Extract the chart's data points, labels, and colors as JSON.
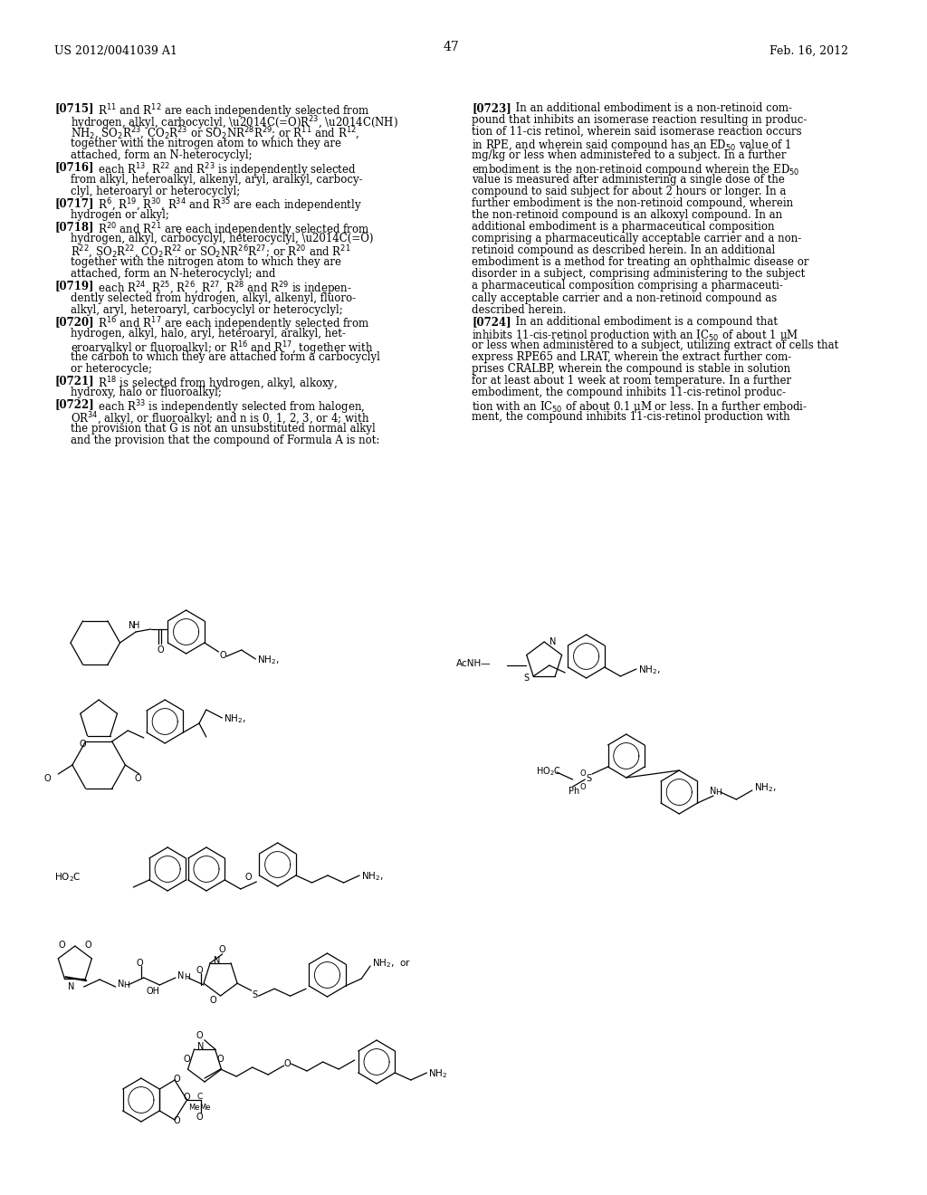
{
  "page_width": 10.24,
  "page_height": 13.2,
  "dpi": 100,
  "background_color": "#ffffff",
  "header_left": "US 2012/0041039 A1",
  "header_right": "Feb. 16, 2012",
  "page_number": "47"
}
